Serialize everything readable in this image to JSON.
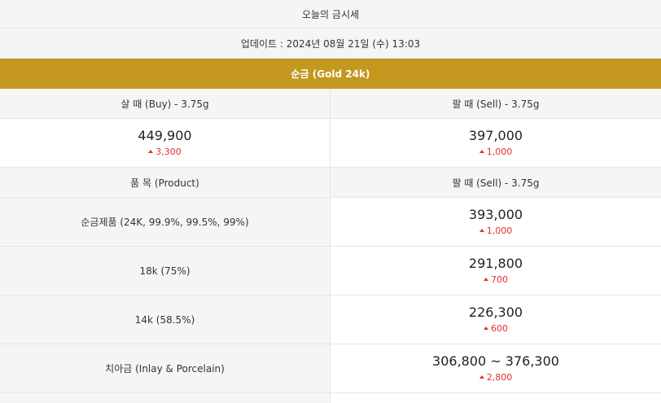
{
  "header": {
    "title": "오늘의 금시세",
    "update": "업데이트 : 2024년 08월 21일 (수) 13:03",
    "section": "순금 (Gold 24k)"
  },
  "gold": {
    "buy_label": "살 때 (Buy) - 3.75g",
    "sell_label": "팔 때 (Sell) - 3.75g",
    "buy_price": "449,900",
    "buy_change": "3,300",
    "sell_price": "397,000",
    "sell_change": "1,000"
  },
  "products_header": {
    "product_label": "품 목 (Product)",
    "sell_label": "팔 때 (Sell) - 3.75g"
  },
  "products": [
    {
      "name": "순금제품 (24K, 99.9%, 99.5%, 99%)",
      "price": "393,000",
      "change": "1,000"
    },
    {
      "name": "18k (75%)",
      "price": "291,800",
      "change": "700"
    },
    {
      "name": "14k (58.5%)",
      "price": "226,300",
      "change": "600"
    },
    {
      "name": "치아금 (Inlay & Porcelain)",
      "price": "306,800 ~ 376,300",
      "change": "2,800"
    }
  ],
  "colors": {
    "gold_header": "#c4981e",
    "increase": "#e03030",
    "label_bg": "#f5f5f5"
  },
  "icons": {
    "change": "triangle-up-icon"
  }
}
